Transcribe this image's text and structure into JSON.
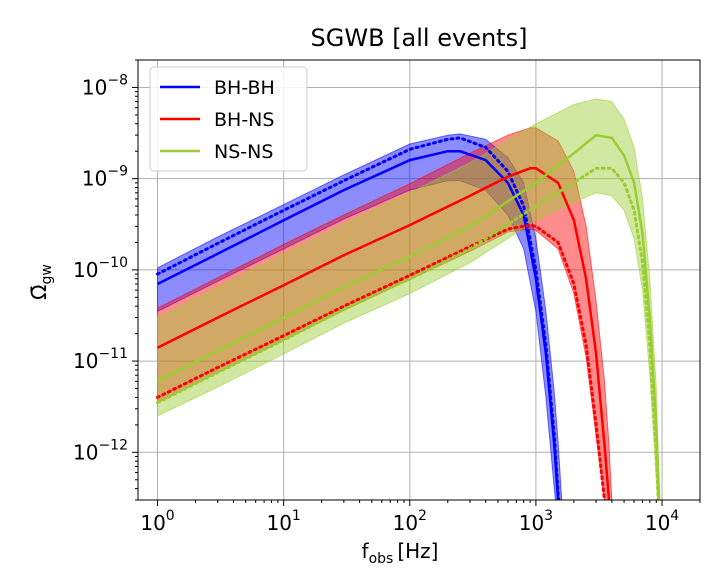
{
  "chart_data": {
    "type": "line",
    "title": "SGWB [all events]",
    "xlabel": "f",
    "xlabel_sub": "obs",
    "xlabel_unit": "[Hz]",
    "ylabel_main": "Ω̄",
    "ylabel_sub": "gw",
    "xscale": "log",
    "yscale": "log",
    "xlim": [
      0.7,
      20000
    ],
    "ylim": [
      3e-13,
      2e-08
    ],
    "grid": true,
    "legend_position": "top-left",
    "xticks": [
      {
        "value": 1,
        "base": "10",
        "exp": "0"
      },
      {
        "value": 10,
        "base": "10",
        "exp": "1"
      },
      {
        "value": 100,
        "base": "10",
        "exp": "2"
      },
      {
        "value": 1000,
        "base": "10",
        "exp": "3"
      },
      {
        "value": 10000,
        "base": "10",
        "exp": "4"
      }
    ],
    "yticks": [
      {
        "value": 1e-12,
        "base": "10",
        "exp": "−12"
      },
      {
        "value": 1e-11,
        "base": "10",
        "exp": "−11"
      },
      {
        "value": 1e-10,
        "base": "10",
        "exp": "−10"
      },
      {
        "value": 1e-09,
        "base": "10",
        "exp": "−9"
      },
      {
        "value": 1e-08,
        "base": "10",
        "exp": "−8"
      }
    ],
    "series": [
      {
        "name": "BH-BH",
        "color": "#0000ff",
        "x": [
          1,
          3,
          10,
          30,
          100,
          200,
          250,
          400,
          600,
          800,
          1000,
          1200,
          1400,
          1500,
          1600,
          1800
        ],
        "median": [
          7e-11,
          1.5e-10,
          3.5e-10,
          7.5e-10,
          1.6e-09,
          2e-09,
          2e-09,
          1.6e-09,
          9e-10,
          4e-10,
          8e-11,
          1.2e-11,
          1.2e-12,
          3e-13,
          null,
          null
        ],
        "dotted": [
          9e-11,
          1.95e-10,
          4.5e-10,
          9.5e-10,
          2.1e-09,
          2.7e-09,
          2.8e-09,
          2.2e-09,
          1.2e-09,
          5e-10,
          1e-10,
          1.5e-11,
          1.5e-12,
          3.5e-13,
          null,
          null
        ],
        "lower": [
          3.5e-11,
          7.5e-11,
          1.7e-10,
          3.6e-10,
          7.5e-10,
          9.5e-10,
          9.5e-10,
          7.5e-10,
          4e-10,
          1.7e-10,
          3.5e-11,
          4e-12,
          4e-13,
          null,
          null,
          null
        ],
        "upper": [
          1.05e-10,
          2.3e-10,
          5.2e-10,
          1.1e-09,
          2.4e-09,
          3e-09,
          3.1e-09,
          2.7e-09,
          1.7e-09,
          9e-10,
          2.2e-10,
          3.5e-11,
          4.5e-12,
          1.3e-12,
          3e-13,
          null
        ]
      },
      {
        "name": "BH-NS",
        "color": "#ff0000",
        "x": [
          1,
          3,
          10,
          30,
          100,
          300,
          600,
          900,
          1000,
          1500,
          2000,
          2500,
          3000,
          3500,
          3800,
          4000
        ],
        "median": [
          1.4e-11,
          3e-11,
          6.8e-11,
          1.45e-10,
          3.1e-10,
          6.5e-10,
          1.05e-09,
          1.3e-09,
          1.3e-09,
          9e-10,
          3.5e-10,
          8e-11,
          1.2e-11,
          1.2e-12,
          3e-13,
          null
        ],
        "dotted": [
          4e-12,
          8.5e-12,
          1.9e-11,
          4e-11,
          8.7e-11,
          1.8e-10,
          2.8e-10,
          3.1e-10,
          3e-10,
          2e-10,
          7e-11,
          1.5e-11,
          2e-12,
          3e-13,
          null,
          null
        ],
        "lower": [
          3.5e-12,
          7.5e-12,
          1.7e-11,
          3.6e-11,
          7.8e-11,
          1.6e-10,
          2.6e-10,
          2.8e-10,
          2.7e-10,
          1.7e-10,
          5.5e-11,
          1.1e-11,
          1.5e-12,
          3e-13,
          null,
          null
        ],
        "upper": [
          3.8e-11,
          8.2e-11,
          1.9e-10,
          4e-10,
          8.8e-10,
          1.9e-09,
          3e-09,
          3.6e-09,
          3.6e-09,
          2.6e-09,
          1.2e-09,
          3e-10,
          4.5e-11,
          6e-12,
          1.2e-12,
          3e-13
        ]
      },
      {
        "name": "NS-NS",
        "color": "#9acd32",
        "x": [
          1,
          3,
          10,
          30,
          100,
          300,
          1000,
          2000,
          3000,
          4000,
          5000,
          6000,
          7000,
          8000,
          9000,
          9500
        ],
        "median": [
          6e-12,
          1.3e-11,
          3e-11,
          6.5e-11,
          1.4e-10,
          3e-10,
          9e-10,
          1.9e-09,
          3e-09,
          2.8e-09,
          1.8e-09,
          9e-10,
          2.5e-10,
          3e-11,
          2e-12,
          3e-13
        ],
        "dotted": [
          3.5e-12,
          7.5e-12,
          1.7e-11,
          3.7e-11,
          8e-11,
          1.7e-10,
          5e-10,
          9e-10,
          1.3e-09,
          1.3e-09,
          9e-10,
          4.5e-10,
          1.2e-10,
          1.5e-11,
          1e-12,
          null
        ],
        "lower": [
          2.5e-12,
          5.2e-12,
          1.2e-11,
          2.6e-11,
          5.5e-11,
          1.2e-10,
          3.5e-10,
          5.5e-10,
          7e-10,
          6.5e-10,
          4.5e-10,
          2.2e-10,
          6e-11,
          7e-12,
          5e-13,
          null
        ],
        "upper": [
          3e-11,
          6.5e-11,
          1.5e-10,
          3.2e-10,
          7e-10,
          1.5e-09,
          4e-09,
          6.5e-09,
          7.5e-09,
          7e-09,
          4.5e-09,
          2.2e-09,
          6e-10,
          8e-11,
          5e-12,
          3e-13
        ]
      }
    ]
  }
}
